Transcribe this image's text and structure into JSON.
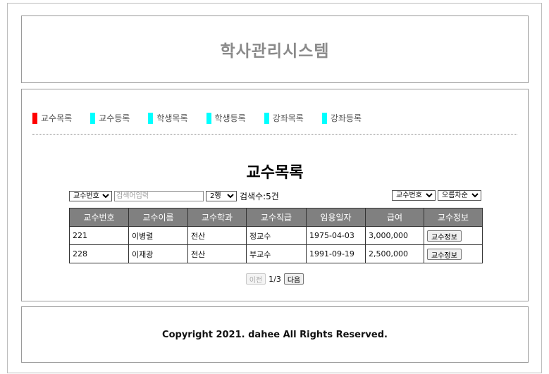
{
  "header": {
    "title": "학사관리시스템"
  },
  "menu": {
    "items": [
      {
        "label": "교수목록",
        "color": "#ff0000"
      },
      {
        "label": "교수등록",
        "color": "#00ffff"
      },
      {
        "label": "학생목록",
        "color": "#00ffff"
      },
      {
        "label": "학생등록",
        "color": "#00ffff"
      },
      {
        "label": "강좌목록",
        "color": "#00ffff"
      },
      {
        "label": "강좌등록",
        "color": "#00ffff"
      }
    ]
  },
  "page": {
    "title": "교수목록"
  },
  "search": {
    "field_selected": "교수번호",
    "placeholder": "검색어입력",
    "rows_selected": "2행",
    "count": "검색수:5건"
  },
  "sort": {
    "by_selected": "교수번호",
    "order_selected": "오름차순"
  },
  "table": {
    "headers": [
      "교수번호",
      "교수이름",
      "교수학과",
      "교수직급",
      "임용일자",
      "급여",
      "교수정보"
    ],
    "rows": [
      {
        "id": "221",
        "name": "이병렬",
        "dept": "전산",
        "rank": "정교수",
        "date": "1975-04-03",
        "salary": "3,000,000",
        "action": "교수정보"
      },
      {
        "id": "228",
        "name": "이재광",
        "dept": "전산",
        "rank": "부교수",
        "date": "1991-09-19",
        "salary": "2,500,000",
        "action": "교수정보"
      }
    ]
  },
  "pager": {
    "prev": "이전",
    "info": "1/3",
    "next": "다음"
  },
  "footer": {
    "copyright": "Copyright 2021. dahee All Rights Reserved."
  }
}
